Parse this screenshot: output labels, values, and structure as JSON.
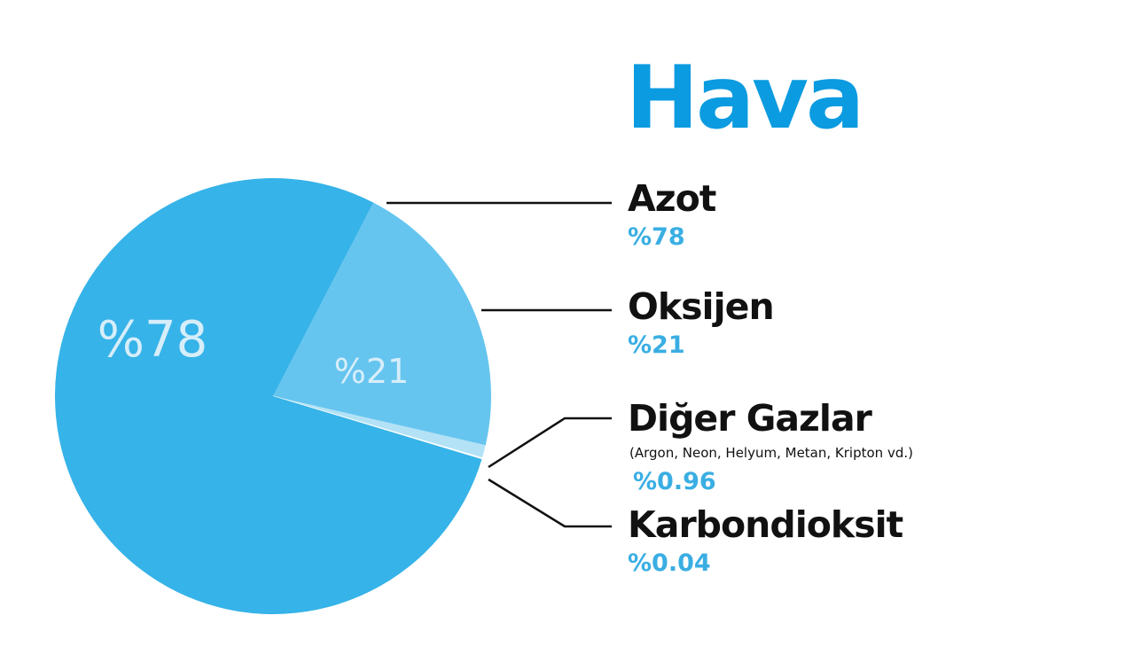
{
  "colors": {
    "accent": "#0b9be0",
    "azot": "#36b3e8",
    "oksijen": "#66c5ef",
    "diger": "#b3e2f6",
    "karbondioksit": "#ffffff",
    "value_text": "#3aaee3"
  },
  "chart_data": {
    "type": "pie",
    "title": "Hava",
    "series": [
      {
        "name": "Azot",
        "value": 78,
        "value_label": "%78",
        "slice_label": "%78"
      },
      {
        "name": "Oksijen",
        "value": 21,
        "value_label": "%21",
        "slice_label": "%21"
      },
      {
        "name": "Diğer Gazlar",
        "note": "(Argon, Neon, Helyum, Metan, Kripton vd.)",
        "value": 0.96,
        "value_label": "%0.96"
      },
      {
        "name": "Karbondioksit",
        "value": 0.04,
        "value_label": "%0.04"
      }
    ]
  }
}
